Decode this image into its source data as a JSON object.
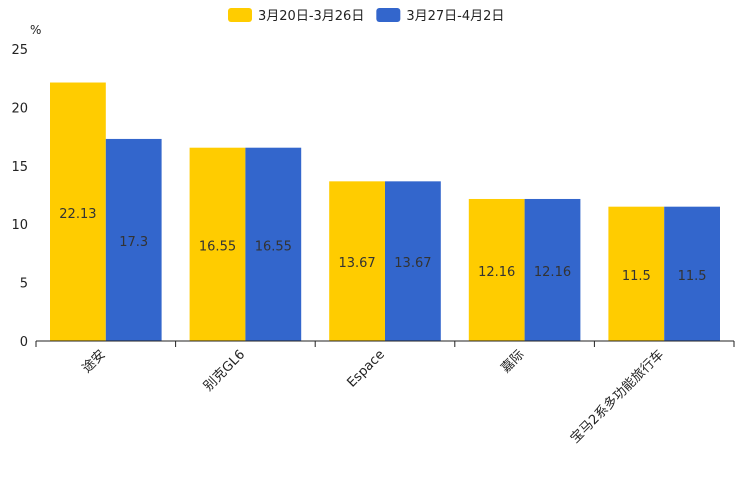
{
  "chart_data": {
    "type": "bar",
    "unit_label": "%",
    "categories": [
      "途安",
      "别克GL6",
      "Espace",
      "嘉际",
      "宝马2系多功能旅行车"
    ],
    "series": [
      {
        "name": "3月20日-3月26日",
        "color": "#FFCC00",
        "values": [
          22.13,
          16.55,
          13.67,
          12.16,
          11.5
        ],
        "labels": [
          "22.13",
          "16.55",
          "13.67",
          "12.16",
          "11.5"
        ]
      },
      {
        "name": "3月27日-4月2日",
        "color": "#3366CC",
        "values": [
          17.3,
          16.55,
          13.67,
          12.16,
          11.5
        ],
        "labels": [
          "17.3",
          "16.55",
          "13.67",
          "12.16",
          "11.5"
        ]
      }
    ],
    "yticks": [
      "0",
      "5",
      "10",
      "15",
      "20",
      "25"
    ],
    "ylim": [
      0,
      25
    ],
    "legend_position": "top-center",
    "grid": false
  }
}
